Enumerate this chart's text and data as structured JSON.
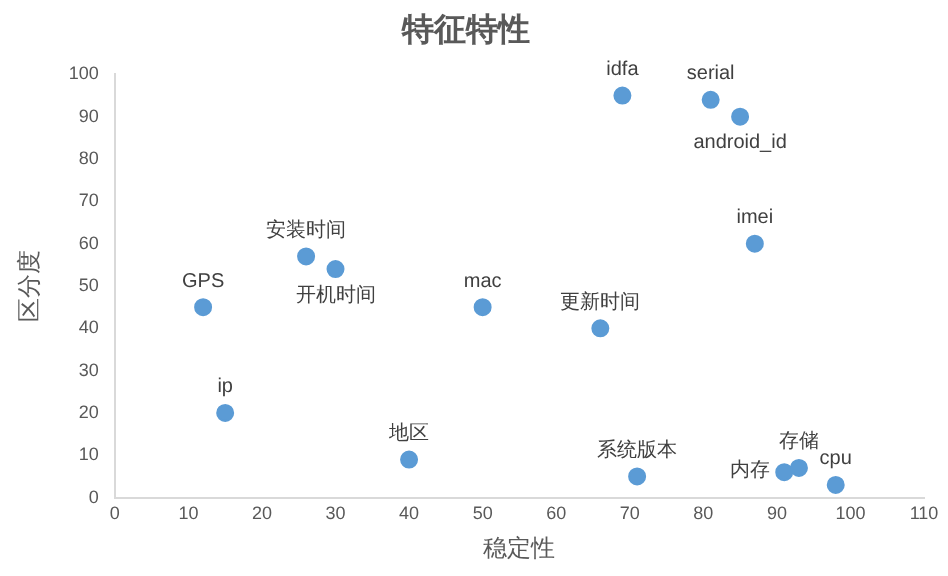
{
  "chart_data": {
    "type": "scatter",
    "title": "特征特性",
    "xlabel": "稳定性",
    "ylabel": "区分度",
    "x": [
      12,
      15,
      26,
      30,
      40,
      50,
      66,
      69,
      71,
      81,
      85,
      87,
      91,
      93,
      98
    ],
    "series": [
      {
        "color": "#5b9bd5",
        "values": [
          45,
          20,
          57,
          54,
          9,
          45,
          40,
          95,
          5,
          94,
          90,
          60,
          6,
          7,
          3
        ]
      }
    ],
    "xlim": [
      0,
      110
    ],
    "xticks": [
      0,
      10,
      20,
      30,
      40,
      50,
      60,
      70,
      80,
      90,
      100,
      110
    ],
    "ylim": [
      0,
      100
    ],
    "yticks": [
      0,
      10,
      20,
      30,
      40,
      50,
      60,
      70,
      80,
      90,
      100
    ],
    "grid": false,
    "legend": false,
    "marker": "circle",
    "annotations": [
      {
        "text": "GPS",
        "x": 12,
        "y": 45
      },
      {
        "text": "ip",
        "x": 15,
        "y": 20
      },
      {
        "text": "安装时间",
        "x": 26,
        "y": 57
      },
      {
        "text": "开机时间",
        "x": 30,
        "y": 54
      },
      {
        "text": "地区",
        "x": 40,
        "y": 9
      },
      {
        "text": "mac",
        "x": 50,
        "y": 45
      },
      {
        "text": "更新时间",
        "x": 66,
        "y": 40
      },
      {
        "text": "idfa",
        "x": 69,
        "y": 95
      },
      {
        "text": "系统版本",
        "x": 71,
        "y": 5
      },
      {
        "text": "serial",
        "x": 81,
        "y": 94
      },
      {
        "text": "android_id",
        "x": 85,
        "y": 90
      },
      {
        "text": "imei",
        "x": 87,
        "y": 60
      },
      {
        "text": "内存",
        "x": 91,
        "y": 6
      },
      {
        "text": "存储",
        "x": 93,
        "y": 7
      },
      {
        "text": "cpu",
        "x": 98,
        "y": 3
      }
    ]
  }
}
